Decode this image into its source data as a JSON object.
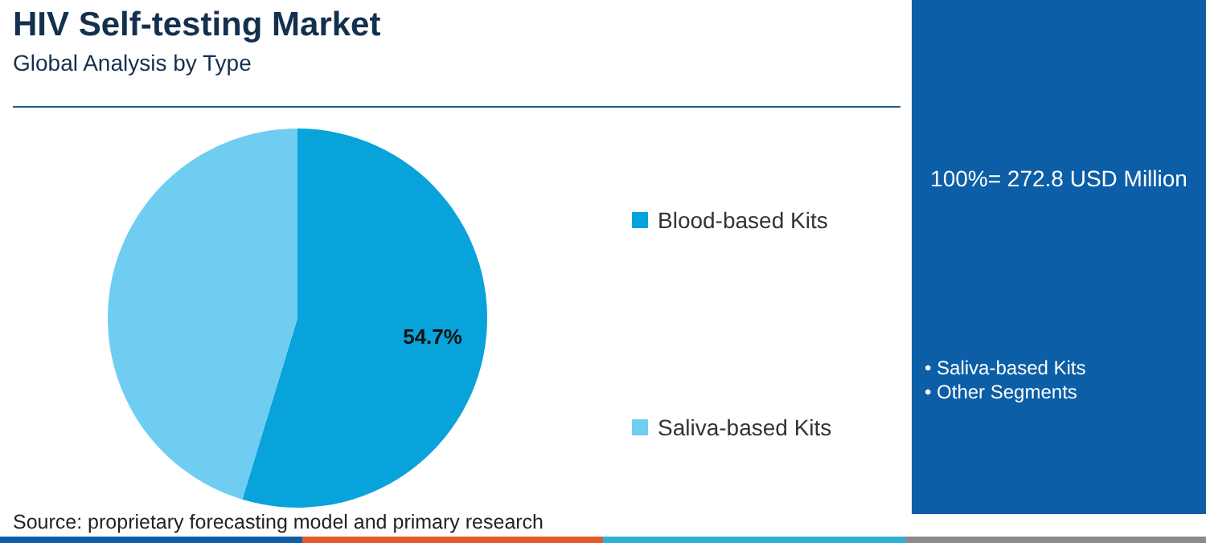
{
  "chart_data": {
    "type": "pie",
    "title": "HIV Self-testing Market",
    "subtitle": "Global Analysis by Type",
    "categories": [
      "Blood-based Kits",
      "Saliva-based Kits"
    ],
    "values": [
      54.7,
      45.3
    ],
    "colors": [
      "#08a3db",
      "#6fcdf1"
    ],
    "value_labels": [
      "54.7%",
      null
    ],
    "legend": "right",
    "annotations": [
      "100%= 272.8 USD Million",
      "• Saliva-based Kits",
      "• Other Segments",
      "Source: proprietary forecasting model and primary research"
    ]
  }
}
